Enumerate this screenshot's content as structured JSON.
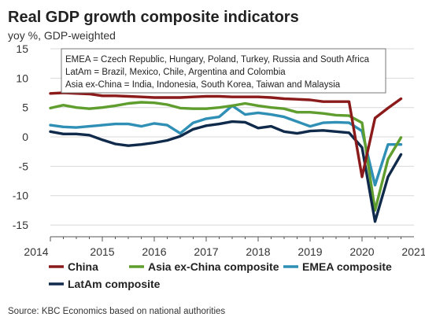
{
  "chart_data": {
    "type": "line",
    "title": "Real GDP growth composite indicators",
    "subtitle": "yoy %, GDP-weighted",
    "xlabel": "",
    "ylabel": "",
    "xlim": [
      2014,
      2021
    ],
    "ylim": [
      -17,
      15
    ],
    "x_ticks": [
      "2014",
      "2015",
      "2016",
      "2017",
      "2018",
      "2019",
      "2020",
      "2021"
    ],
    "y_ticks": [
      "15",
      "10",
      "5",
      "0",
      "-5",
      "-10",
      "-15"
    ],
    "y_tick_values": [
      15,
      10,
      5,
      0,
      -5,
      -10,
      -15
    ],
    "grid": true,
    "annotation": [
      "EMEA = Czech Republic, Hungary, Poland, Turkey, Russia and South Africa",
      "LatAm = Brazil, Mexico, Chile, Argentina and Colombia",
      "Asia ex-China = India, Indonesia, South Korea, Taiwan and Malaysia"
    ],
    "legend_position": "bottom",
    "x": [
      2014.0,
      2014.25,
      2014.5,
      2014.75,
      2015.0,
      2015.25,
      2015.5,
      2015.75,
      2016.0,
      2016.25,
      2016.5,
      2016.75,
      2017.0,
      2017.25,
      2017.5,
      2017.75,
      2018.0,
      2018.25,
      2018.5,
      2018.75,
      2019.0,
      2019.25,
      2019.5,
      2019.75,
      2020.0,
      2020.25,
      2020.5,
      2020.75
    ],
    "series": [
      {
        "name": "China",
        "color": "#8b1a1a",
        "values": [
          7.4,
          7.5,
          7.4,
          7.3,
          7.0,
          7.0,
          6.9,
          6.8,
          6.7,
          6.7,
          6.7,
          6.8,
          6.9,
          6.9,
          6.8,
          6.8,
          6.8,
          6.7,
          6.5,
          6.4,
          6.3,
          6.0,
          6.0,
          6.0,
          -6.8,
          3.2,
          4.9,
          6.5
        ]
      },
      {
        "name": "Asia ex-China composite",
        "color": "#5f9e2e",
        "values": [
          4.9,
          5.4,
          5.0,
          4.8,
          5.0,
          5.3,
          5.7,
          5.9,
          5.8,
          5.5,
          4.9,
          4.8,
          4.8,
          5.0,
          5.3,
          5.7,
          5.3,
          5.0,
          4.8,
          4.2,
          4.2,
          4.0,
          3.7,
          3.6,
          2.4,
          -12.5,
          -3.8,
          -0.1
        ]
      },
      {
        "name": "EMEA composite",
        "color": "#2f8fb5",
        "values": [
          2.0,
          1.7,
          1.6,
          1.8,
          2.0,
          2.2,
          2.2,
          1.8,
          2.3,
          2.0,
          0.6,
          2.4,
          3.1,
          3.4,
          5.3,
          3.8,
          4.1,
          3.8,
          3.4,
          2.6,
          1.8,
          2.4,
          2.5,
          2.4,
          1.0,
          -8.2,
          -1.3,
          -1.3
        ]
      },
      {
        "name": "LatAm composite",
        "color": "#0f2a4a",
        "values": [
          0.9,
          0.5,
          0.5,
          0.3,
          -0.5,
          -1.2,
          -1.5,
          -1.3,
          -1.0,
          -0.6,
          0.1,
          1.3,
          1.9,
          2.2,
          2.6,
          2.5,
          1.5,
          1.8,
          0.9,
          0.6,
          1.0,
          1.1,
          0.9,
          0.7,
          -1.8,
          -14.4,
          -6.8,
          -3.0
        ]
      }
    ],
    "source": "Source: KBC Economics based on national authorities"
  }
}
